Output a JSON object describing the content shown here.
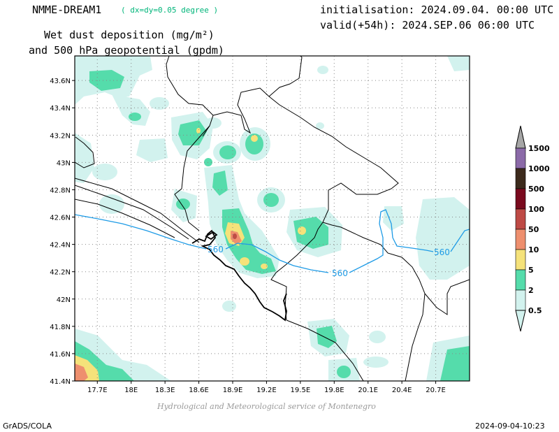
{
  "header": {
    "model_name": "NMME-DREAM1",
    "resolution_note": "( dx=dy=0.05 degree )",
    "init_line": "initialisation: 2024.09.04. 00:00 UTC",
    "valid_line": "valid(+54h): 2024.SEP.06 06:00 UTC",
    "title_line1": "Wet dust deposition (mg/m²)",
    "title_line2": "and 500 hPa geopotential (gpdm)"
  },
  "map": {
    "lat_labels": [
      "43.6N",
      "43.4N",
      "43.2N",
      "43N",
      "42.8N",
      "42.6N",
      "42.4N",
      "42.2N",
      "42N",
      "41.8N",
      "41.6N",
      "41.4N"
    ],
    "lat_values": [
      43.6,
      43.4,
      43.2,
      43.0,
      42.8,
      42.6,
      42.4,
      42.2,
      42.0,
      41.8,
      41.6,
      41.4
    ],
    "lon_labels": [
      "17.7E",
      "18E",
      "18.3E",
      "18.6E",
      "18.9E",
      "19.2E",
      "19.5E",
      "19.8E",
      "20.1E",
      "20.4E",
      "20.7E"
    ],
    "lon_values": [
      17.7,
      18.0,
      18.3,
      18.6,
      18.9,
      19.2,
      19.5,
      19.8,
      20.1,
      20.4,
      20.7
    ],
    "lon_range": [
      17.5,
      21.0
    ],
    "lat_range": [
      41.4,
      43.78
    ],
    "contour_value": 560,
    "contour_labels": [
      "560",
      "560",
      "560"
    ],
    "contour_color": "#1e9be6",
    "grid": "dotted",
    "shading_colors": {
      "0.5": "#d2f2ee",
      "2": "#55dcab",
      "5": "#f5e27a",
      "10": "#ee8f6e",
      "50": "#bf4c45"
    }
  },
  "legend": {
    "levels": [
      "1500",
      "1000",
      "500",
      "100",
      "50",
      "10",
      "5",
      "2",
      "0.5"
    ],
    "colors": [
      "#a6a6a6",
      "#8b6aa8",
      "#3c2a1c",
      "#7a0a1e",
      "#be4a45",
      "#ee8f6e",
      "#f5e27a",
      "#55dcab",
      "#d2f2ee"
    ]
  },
  "credit": "Hydrological and Meteorological service of Montenegro",
  "footer": {
    "left": "GrADS/COLA",
    "right": "2024-09-04-10:23"
  }
}
